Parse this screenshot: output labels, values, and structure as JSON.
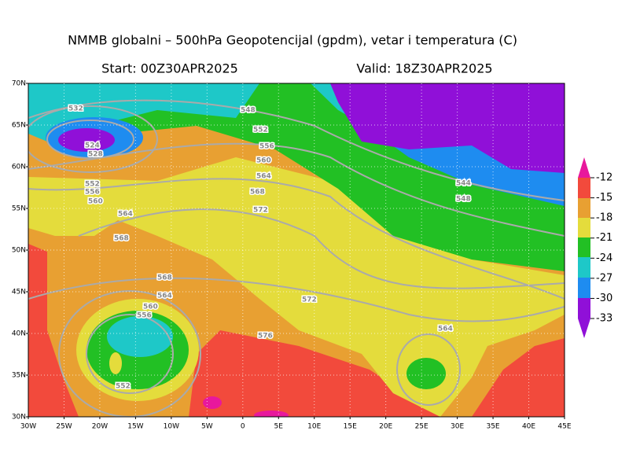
{
  "header": {
    "title": "NMMB globalni – 500hPa Geopotencijal (gpdm), vetar i temperatura (C)",
    "start": "Start: 00Z30APR2025",
    "valid": "Valid: 18Z30APR2025"
  },
  "map": {
    "lat_ticks": [
      "70N",
      "65N",
      "60N",
      "55N",
      "50N",
      "45N",
      "40N",
      "35N",
      "30N"
    ],
    "lon_ticks": [
      "30W",
      "25W",
      "20W",
      "15W",
      "10W",
      "5W",
      "0",
      "5E",
      "10E",
      "15E",
      "20E",
      "25E",
      "30E",
      "35E",
      "40E",
      "45E"
    ],
    "contour_labels": [
      "532",
      "524",
      "528",
      "548",
      "552",
      "556",
      "560",
      "564",
      "568",
      "572",
      "544",
      "548",
      "568",
      "564",
      "560",
      "556",
      "552",
      "576",
      "572",
      "568",
      "564",
      "560",
      "552",
      "556",
      "564"
    ]
  },
  "colorbar": {
    "labels": [
      -12,
      -15,
      -18,
      -21,
      -24,
      -27,
      -30,
      -33
    ]
  }
}
